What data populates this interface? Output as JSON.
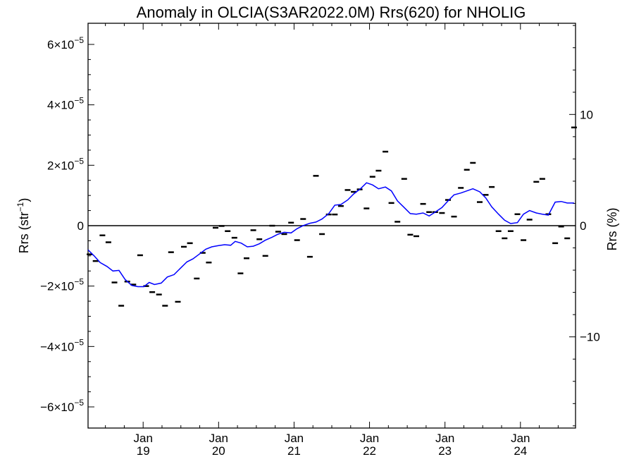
{
  "chart_data": {
    "type": "line",
    "title": "Anomaly in OLCIA(S3AR2022.0M) Rrs(620) for NHOLIG",
    "ylabel": "Rrs (str",
    "ylabel_sup": "−1",
    "ylabel_close": ")",
    "y2label": "Rrs (%)",
    "xlim": [
      2018.27,
      2024.73
    ],
    "ylim": [
      -6.7e-05,
      6.7e-05
    ],
    "y2lim": [
      -18.2,
      18.2
    ],
    "x_ticks": [
      {
        "x": 2019.0,
        "month": "Jan",
        "year": "19"
      },
      {
        "x": 2020.0,
        "month": "Jan",
        "year": "20"
      },
      {
        "x": 2021.0,
        "month": "Jan",
        "year": "21"
      },
      {
        "x": 2022.0,
        "month": "Jan",
        "year": "22"
      },
      {
        "x": 2023.0,
        "month": "Jan",
        "year": "23"
      },
      {
        "x": 2024.0,
        "month": "Jan",
        "year": "24"
      }
    ],
    "y_ticks": [
      {
        "v": 6e-05,
        "base": "6×10",
        "exp": "−5"
      },
      {
        "v": 4e-05,
        "base": "4×10",
        "exp": "−5"
      },
      {
        "v": 2e-05,
        "base": "2×10",
        "exp": "−5"
      },
      {
        "v": 0,
        "base": "0",
        "exp": ""
      },
      {
        "v": -2e-05,
        "base": "−2×10",
        "exp": "−5"
      },
      {
        "v": -4e-05,
        "base": "−4×10",
        "exp": "−5"
      },
      {
        "v": -6e-05,
        "base": "−6×10",
        "exp": "−5"
      }
    ],
    "y2_ticks": [
      {
        "v": 10,
        "label": "10"
      },
      {
        "v": 0,
        "label": "0"
      },
      {
        "v": -10,
        "label": "−10"
      }
    ],
    "zero_line": 0,
    "colors": {
      "smooth": "#0000ff",
      "monthly": "#000000",
      "axes": "#000000"
    },
    "series": [
      {
        "style": "dash-markers",
        "points": [
          [
            2018.29,
            -9.5e-06
          ],
          [
            2018.37,
            -1.17e-05
          ],
          [
            2018.46,
            -3.2e-06
          ],
          [
            2018.54,
            -5.5e-06
          ],
          [
            2018.62,
            -1.88e-05
          ],
          [
            2018.71,
            -2.65e-05
          ],
          [
            2018.79,
            -1.85e-05
          ],
          [
            2018.87,
            -1.95e-05
          ],
          [
            2018.96,
            -9.8e-06
          ],
          [
            2019.04,
            -2e-05
          ],
          [
            2019.12,
            -2.2e-05
          ],
          [
            2019.21,
            -2.28e-05
          ],
          [
            2019.29,
            -2.65e-05
          ],
          [
            2019.37,
            -8.8e-06
          ],
          [
            2019.46,
            -2.52e-05
          ],
          [
            2019.54,
            -7e-06
          ],
          [
            2019.62,
            -5.8e-06
          ],
          [
            2019.71,
            -1.75e-05
          ],
          [
            2019.79,
            -9e-06
          ],
          [
            2019.87,
            -1.22e-05
          ],
          [
            2019.96,
            -7e-07
          ],
          [
            2020.04,
            -1e-07
          ],
          [
            2020.12,
            -1.8e-06
          ],
          [
            2020.21,
            -4e-06
          ],
          [
            2020.29,
            -1.58e-05
          ],
          [
            2020.37,
            -1.08e-05
          ],
          [
            2020.46,
            -1.5e-06
          ],
          [
            2020.54,
            -4.5e-06
          ],
          [
            2020.62,
            -1e-05
          ],
          [
            2020.71,
            0.0
          ],
          [
            2020.79,
            -2e-06
          ],
          [
            2020.87,
            -2.8e-06
          ],
          [
            2020.96,
            1e-06
          ],
          [
            2021.04,
            -4.8e-06
          ],
          [
            2021.12,
            2.2e-06
          ],
          [
            2021.21,
            -1.03e-05
          ],
          [
            2021.29,
            1.65e-05
          ],
          [
            2021.37,
            -2.8e-06
          ],
          [
            2021.46,
            3.7e-06
          ],
          [
            2021.54,
            3.7e-06
          ],
          [
            2021.62,
            6.5e-06
          ],
          [
            2021.71,
            1.18e-05
          ],
          [
            2021.79,
            1.12e-05
          ],
          [
            2021.87,
            1.2e-05
          ],
          [
            2021.96,
            5.7e-06
          ],
          [
            2022.04,
            1.62e-05
          ],
          [
            2022.12,
            1.82e-05
          ],
          [
            2022.21,
            2.45e-05
          ],
          [
            2022.29,
            7.5e-06
          ],
          [
            2022.37,
            1.3e-06
          ],
          [
            2022.46,
            1.55e-05
          ],
          [
            2022.54,
            -3e-06
          ],
          [
            2022.62,
            -3.5e-06
          ],
          [
            2022.71,
            7.2e-06
          ],
          [
            2022.79,
            4.5e-06
          ],
          [
            2022.87,
            4.5e-06
          ],
          [
            2022.96,
            4.2e-06
          ],
          [
            2023.04,
            8.5e-06
          ],
          [
            2023.12,
            3e-06
          ],
          [
            2023.21,
            1.25e-05
          ],
          [
            2023.29,
            1.85e-05
          ],
          [
            2023.37,
            2.08e-05
          ],
          [
            2023.46,
            7.8e-06
          ],
          [
            2023.54,
            1.02e-05
          ],
          [
            2023.62,
            1.28e-05
          ],
          [
            2023.71,
            -1.8e-06
          ],
          [
            2023.79,
            -4.2e-06
          ],
          [
            2023.87,
            -1.8e-06
          ],
          [
            2023.96,
            3.8e-06
          ],
          [
            2024.04,
            -4.8e-06
          ],
          [
            2024.12,
            2e-06
          ],
          [
            2024.21,
            1.45e-05
          ],
          [
            2024.29,
            1.55e-05
          ],
          [
            2024.37,
            3.8e-06
          ],
          [
            2024.46,
            -5.8e-06
          ],
          [
            2024.54,
            -3e-07
          ],
          [
            2024.62,
            -4.2e-06
          ],
          [
            2024.71,
            3.25e-05
          ]
        ]
      },
      {
        "style": "line",
        "points": [
          [
            2018.27,
            -8e-06
          ],
          [
            2018.35,
            -1e-05
          ],
          [
            2018.43,
            -1.22e-05
          ],
          [
            2018.52,
            -1.35e-05
          ],
          [
            2018.6,
            -1.5e-05
          ],
          [
            2018.68,
            -1.48e-05
          ],
          [
            2018.76,
            -1.78e-05
          ],
          [
            2018.85,
            -1.98e-05
          ],
          [
            2018.93,
            -2.02e-05
          ],
          [
            2019.01,
            -2.02e-05
          ],
          [
            2019.08,
            -1.88e-05
          ],
          [
            2019.15,
            -1.95e-05
          ],
          [
            2019.24,
            -1.9e-05
          ],
          [
            2019.32,
            -1.7e-05
          ],
          [
            2019.41,
            -1.62e-05
          ],
          [
            2019.49,
            -1.42e-05
          ],
          [
            2019.58,
            -1.2e-05
          ],
          [
            2019.66,
            -1.1e-05
          ],
          [
            2019.74,
            -9.5e-06
          ],
          [
            2019.83,
            -7.8e-06
          ],
          [
            2019.91,
            -7e-06
          ],
          [
            2020.0,
            -6.6e-06
          ],
          [
            2020.08,
            -6.3e-06
          ],
          [
            2020.16,
            -6.5e-06
          ],
          [
            2020.22,
            -5.2e-06
          ],
          [
            2020.3,
            -5.8e-06
          ],
          [
            2020.38,
            -7e-06
          ],
          [
            2020.46,
            -6.8e-06
          ],
          [
            2020.54,
            -6e-06
          ],
          [
            2020.62,
            -4.8e-06
          ],
          [
            2020.71,
            -3.8e-06
          ],
          [
            2020.79,
            -2.8e-06
          ],
          [
            2020.87,
            -2.2e-06
          ],
          [
            2020.96,
            -2.4e-06
          ],
          [
            2021.04,
            -1e-06
          ],
          [
            2021.12,
            0.0
          ],
          [
            2021.21,
            8e-07
          ],
          [
            2021.29,
            1.2e-06
          ],
          [
            2021.37,
            2.2e-06
          ],
          [
            2021.46,
            4e-06
          ],
          [
            2021.54,
            6.8e-06
          ],
          [
            2021.62,
            7e-06
          ],
          [
            2021.71,
            8.5e-06
          ],
          [
            2021.79,
            1.05e-05
          ],
          [
            2021.88,
            1.22e-05
          ],
          [
            2021.96,
            1.42e-05
          ],
          [
            2022.04,
            1.35e-05
          ],
          [
            2022.12,
            1.22e-05
          ],
          [
            2022.21,
            1.28e-05
          ],
          [
            2022.29,
            1.15e-05
          ],
          [
            2022.37,
            8.2e-06
          ],
          [
            2022.46,
            6e-06
          ],
          [
            2022.54,
            4e-06
          ],
          [
            2022.62,
            3.8e-06
          ],
          [
            2022.71,
            4.2e-06
          ],
          [
            2022.79,
            3.2e-06
          ],
          [
            2022.87,
            4.5e-06
          ],
          [
            2022.96,
            6e-06
          ],
          [
            2023.04,
            8.2e-06
          ],
          [
            2023.12,
            1.02e-05
          ],
          [
            2023.21,
            1.08e-05
          ],
          [
            2023.29,
            1.15e-05
          ],
          [
            2023.37,
            1.22e-05
          ],
          [
            2023.46,
            1.12e-05
          ],
          [
            2023.54,
            9.2e-06
          ],
          [
            2023.62,
            6.2e-06
          ],
          [
            2023.71,
            3.8e-06
          ],
          [
            2023.79,
            1.8e-06
          ],
          [
            2023.87,
            7e-07
          ],
          [
            2023.96,
            1e-06
          ],
          [
            2024.04,
            3.8e-06
          ],
          [
            2024.12,
            5e-06
          ],
          [
            2024.21,
            4.2e-06
          ],
          [
            2024.29,
            3.8e-06
          ],
          [
            2024.37,
            3.5e-06
          ],
          [
            2024.46,
            7.8e-06
          ],
          [
            2024.54,
            8e-06
          ],
          [
            2024.62,
            7.5e-06
          ],
          [
            2024.71,
            7.5e-06
          ]
        ]
      }
    ]
  }
}
